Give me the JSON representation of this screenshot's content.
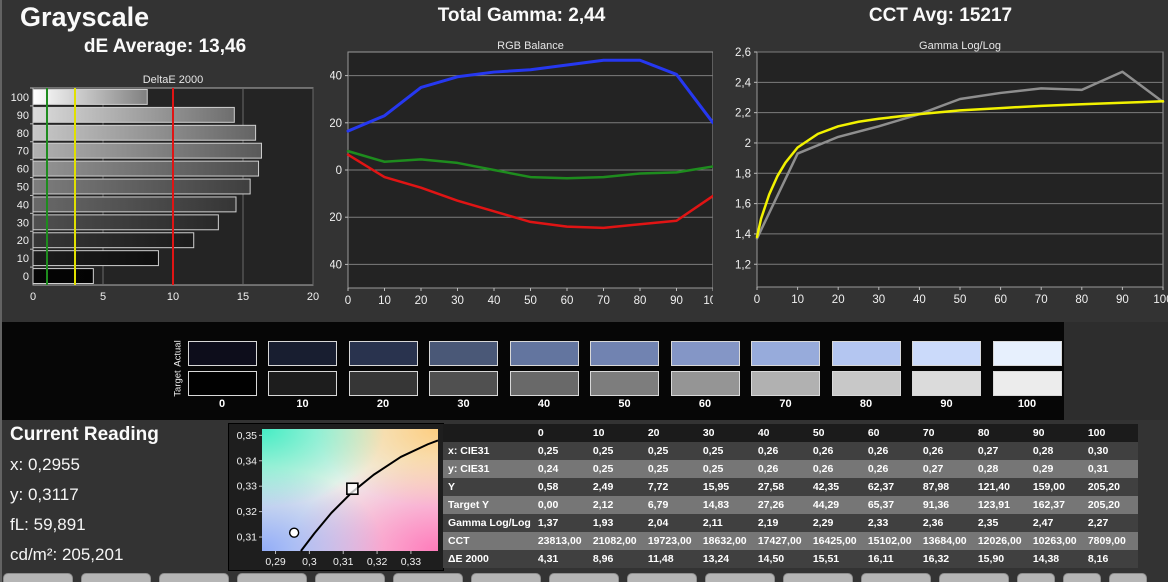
{
  "header": {
    "title": "Grayscale",
    "de_average": "dE Average: 13,46",
    "total_gamma": "Total Gamma: 2,44",
    "cct_avg": "CCT Avg: 15217"
  },
  "current_reading": {
    "title": "Current Reading",
    "lines": [
      "x: 0,2955",
      "y: 0,3117",
      "fL: 59,891",
      "cd/m²: 205,201"
    ]
  },
  "swatches": {
    "row_labels": [
      "Actual",
      "Target"
    ],
    "levels": [
      "0",
      "10",
      "20",
      "30",
      "40",
      "50",
      "60",
      "70",
      "80",
      "90",
      "100"
    ],
    "actual_colors": [
      "#0d0d1b",
      "#181e30",
      "#29334e",
      "#4a5877",
      "#63759f",
      "#7183b1",
      "#8496c6",
      "#97abdb",
      "#b4c6f1",
      "#cbdafa",
      "#e7f0fd"
    ],
    "target_colors": [
      "#010101",
      "#1d1d1d",
      "#363636",
      "#505050",
      "#696969",
      "#7d7d7d",
      "#959595",
      "#b1b1b1",
      "#c8c8c8",
      "#dbdbdb",
      "#ececec"
    ]
  },
  "table": {
    "columns": [
      "",
      "0",
      "10",
      "20",
      "30",
      "40",
      "50",
      "60",
      "70",
      "80",
      "90",
      "100"
    ],
    "rows": [
      {
        "label": "x: CIE31",
        "values": [
          "0,25",
          "0,25",
          "0,25",
          "0,25",
          "0,26",
          "0,26",
          "0,26",
          "0,26",
          "0,27",
          "0,28",
          "0,30"
        ]
      },
      {
        "label": "y: CIE31",
        "values": [
          "0,24",
          "0,25",
          "0,25",
          "0,25",
          "0,26",
          "0,26",
          "0,26",
          "0,27",
          "0,28",
          "0,29",
          "0,31"
        ]
      },
      {
        "label": "Y",
        "values": [
          "0,58",
          "2,49",
          "7,72",
          "15,95",
          "27,58",
          "42,35",
          "62,37",
          "87,98",
          "121,40",
          "159,00",
          "205,20"
        ]
      },
      {
        "label": "Target Y",
        "values": [
          "0,00",
          "2,12",
          "6,79",
          "14,83",
          "27,26",
          "44,29",
          "65,37",
          "91,36",
          "123,91",
          "162,37",
          "205,20"
        ]
      },
      {
        "label": "Gamma Log/Log",
        "values": [
          "1,37",
          "1,93",
          "2,04",
          "2,11",
          "2,19",
          "2,29",
          "2,33",
          "2,36",
          "2,35",
          "2,47",
          "2,27"
        ]
      },
      {
        "label": "CCT",
        "values": [
          "23813,00",
          "21082,00",
          "19723,00",
          "18632,00",
          "17427,00",
          "16425,00",
          "15102,00",
          "13684,00",
          "12026,00",
          "10263,00",
          "7809,00"
        ]
      },
      {
        "label": "ΔE 2000",
        "values": [
          "4,31",
          "8,96",
          "11,48",
          "13,24",
          "14,50",
          "15,51",
          "16,11",
          "16,32",
          "15,90",
          "14,38",
          "8,16"
        ]
      }
    ]
  },
  "tabbar": {
    "wide_tab_count": 13,
    "narrow_tab_count": 3
  },
  "chart_data": [
    {
      "id": "deltae-2000",
      "type": "bar",
      "orientation": "horizontal",
      "title": "DeltaE 2000",
      "categories": [
        "100",
        "90",
        "80",
        "70",
        "60",
        "50",
        "40",
        "30",
        "20",
        "10",
        "0"
      ],
      "values": [
        8.16,
        14.38,
        15.9,
        16.32,
        16.11,
        15.51,
        14.5,
        13.24,
        11.48,
        8.96,
        4.31
      ],
      "bar_colors": [
        "#ffffff",
        "#dbdbdb",
        "#c8c8c8",
        "#b1b1b1",
        "#959595",
        "#7d7d7d",
        "#696969",
        "#505050",
        "#363636",
        "#1d1d1d",
        "#050505"
      ],
      "xlim": [
        0,
        20
      ],
      "xticks": [
        0,
        5,
        10,
        15,
        20
      ],
      "reference_lines": [
        {
          "value": 1,
          "color": "#1e8c1e"
        },
        {
          "value": 3,
          "color": "#e0e000"
        },
        {
          "value": 10,
          "color": "#e01414"
        }
      ],
      "grid": true
    },
    {
      "id": "rgb-balance",
      "type": "line",
      "title": "RGB Balance",
      "x": [
        0,
        10,
        20,
        30,
        40,
        50,
        60,
        70,
        80,
        90,
        100
      ],
      "xlim": [
        0,
        100
      ],
      "ylim": [
        -50,
        50
      ],
      "xticks": [
        {
          "v": 0,
          "label": "0"
        },
        {
          "v": 10,
          "label": "10"
        },
        {
          "v": 20,
          "label": "20"
        },
        {
          "v": 30,
          "label": "30"
        },
        {
          "v": 40,
          "label": "40"
        },
        {
          "v": 50,
          "label": "50"
        },
        {
          "v": 60,
          "label": "60"
        },
        {
          "v": 70,
          "label": "70"
        },
        {
          "v": 80,
          "label": "80"
        },
        {
          "v": 90,
          "label": "90"
        },
        {
          "v": 100,
          "label": "100"
        }
      ],
      "yticks": [
        {
          "v": 40,
          "label": "40"
        },
        {
          "v": 20,
          "label": "20"
        },
        {
          "v": 0,
          "label": "0"
        },
        {
          "v": -20,
          "label": "-20"
        },
        {
          "v": -40,
          "label": "-40"
        }
      ],
      "series": [
        {
          "name": "blue",
          "color": "#2638f0",
          "width": 3,
          "values": [
            16.5,
            23,
            35,
            39.5,
            41.5,
            42.5,
            44.5,
            46.5,
            46.5,
            40.5,
            20
          ]
        },
        {
          "name": "green",
          "color": "#1e8c1e",
          "width": 2.5,
          "values": [
            8,
            3.5,
            4.5,
            3,
            0,
            -3,
            -3.5,
            -3,
            -1.5,
            -1,
            1.5
          ]
        },
        {
          "name": "red",
          "color": "#e01414",
          "width": 2.5,
          "values": [
            6.5,
            -3,
            -7.5,
            -13,
            -17.5,
            -22,
            -24,
            -24.5,
            -23,
            -21.5,
            -11
          ]
        }
      ],
      "grid": "horizontal",
      "legend": "none"
    },
    {
      "id": "gamma-loglog",
      "type": "line",
      "title": "Gamma Log/Log",
      "xlim": [
        0,
        100
      ],
      "ylim": [
        1.05,
        2.6
      ],
      "xticks": [
        {
          "v": 0,
          "label": "0"
        },
        {
          "v": 10,
          "label": "10"
        },
        {
          "v": 20,
          "label": "20"
        },
        {
          "v": 30,
          "label": "30"
        },
        {
          "v": 40,
          "label": "40"
        },
        {
          "v": 50,
          "label": "50"
        },
        {
          "v": 60,
          "label": "60"
        },
        {
          "v": 70,
          "label": "70"
        },
        {
          "v": 80,
          "label": "80"
        },
        {
          "v": 90,
          "label": "90"
        },
        {
          "v": 100,
          "label": "100"
        }
      ],
      "yticks": [
        {
          "v": 2.6,
          "label": "2,6"
        },
        {
          "v": 2.4,
          "label": "2,4"
        },
        {
          "v": 2.2,
          "label": "2,2"
        },
        {
          "v": 2.0,
          "label": "2"
        },
        {
          "v": 1.8,
          "label": "1,8"
        },
        {
          "v": 1.6,
          "label": "1,6"
        },
        {
          "v": 1.4,
          "label": "1,4"
        },
        {
          "v": 1.2,
          "label": "1,2"
        }
      ],
      "series": [
        {
          "name": "measured",
          "color": "#8e8e8e",
          "width": 2.5,
          "x": [
            0,
            10,
            20,
            30,
            40,
            50,
            60,
            70,
            80,
            90,
            100
          ],
          "values": [
            1.37,
            1.93,
            2.04,
            2.11,
            2.19,
            2.29,
            2.33,
            2.36,
            2.35,
            2.47,
            2.27
          ]
        },
        {
          "name": "target",
          "color": "#f2f200",
          "width": 2.5,
          "x": [
            0,
            1,
            2,
            3,
            5,
            7,
            10,
            15,
            20,
            25,
            30,
            40,
            50,
            60,
            70,
            80,
            90,
            100
          ],
          "values": [
            1.38,
            1.5,
            1.58,
            1.66,
            1.78,
            1.87,
            1.97,
            2.06,
            2.11,
            2.14,
            2.16,
            2.19,
            2.215,
            2.23,
            2.245,
            2.255,
            2.265,
            2.275
          ]
        }
      ],
      "grid": "horizontal",
      "legend": "none"
    },
    {
      "id": "cie-detail",
      "type": "scatter",
      "title": "",
      "xlim": [
        0.286,
        0.338
      ],
      "ylim": [
        0.3045,
        0.3525
      ],
      "xticks": [
        {
          "v": 0.29,
          "label": "0,29"
        },
        {
          "v": 0.3,
          "label": "0,3"
        },
        {
          "v": 0.31,
          "label": "0,31"
        },
        {
          "v": 0.32,
          "label": "0,32"
        },
        {
          "v": 0.33,
          "label": "0,33"
        }
      ],
      "yticks": [
        {
          "v": 0.35,
          "label": "0,35"
        },
        {
          "v": 0.34,
          "label": "0,34"
        },
        {
          "v": 0.33,
          "label": "0,33"
        },
        {
          "v": 0.32,
          "label": "0,32"
        },
        {
          "v": 0.31,
          "label": "0,31"
        }
      ],
      "locus": [
        [
          0.2975,
          0.3045
        ],
        [
          0.3015,
          0.3115
        ],
        [
          0.3065,
          0.3195
        ],
        [
          0.3125,
          0.3275
        ],
        [
          0.319,
          0.3345
        ],
        [
          0.327,
          0.3415
        ],
        [
          0.335,
          0.3465
        ],
        [
          0.338,
          0.348
        ]
      ],
      "markers": [
        {
          "shape": "square",
          "x": 0.3127,
          "y": 0.329,
          "name": "target-white"
        },
        {
          "shape": "circle",
          "x": 0.2955,
          "y": 0.3117,
          "name": "current-reading"
        }
      ]
    }
  ]
}
